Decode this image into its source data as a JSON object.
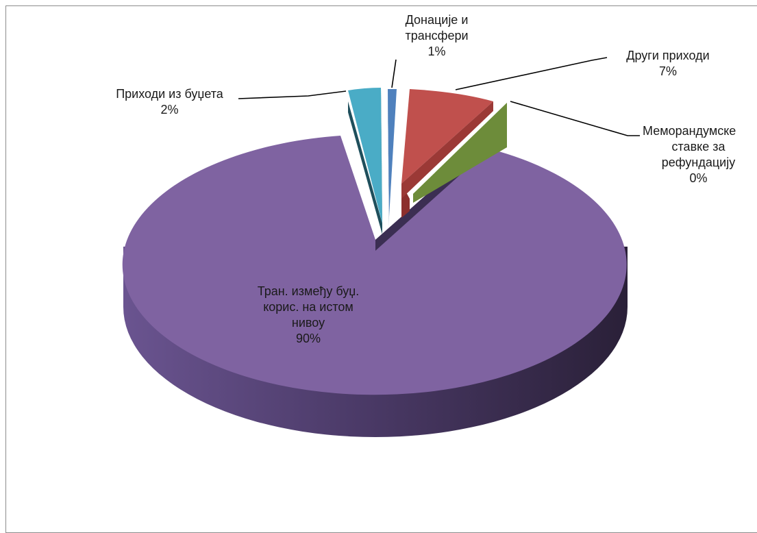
{
  "chart_data": {
    "type": "pie",
    "style": "3d-exploded",
    "slices": [
      {
        "label": "Тран. између буџ. корис. на истом нивоу",
        "label_lines": [
          "Тран. између буџ.",
          "корис. на истом",
          "нивоу"
        ],
        "value": 90,
        "pct": "90%",
        "color": "#8064a2"
      },
      {
        "label": "Приходи из буџета",
        "label_lines": [
          "Приходи из буџета"
        ],
        "value": 2,
        "pct": "2%",
        "color": "#4bacc6"
      },
      {
        "label": "Донације и трансфери",
        "label_lines": [
          "Донације и",
          "трансфери"
        ],
        "value": 1,
        "pct": "1%",
        "color": "#4f81bd"
      },
      {
        "label": "Други приходи",
        "label_lines": [
          "Други приходи"
        ],
        "value": 7,
        "pct": "7%",
        "color": "#c0504d"
      },
      {
        "label": "Меморандумске ставке за рефундацију",
        "label_lines": [
          "Меморандумске",
          "ставке за",
          "рефундацију"
        ],
        "value": 0,
        "pct": "0%",
        "color": "#9bbb59"
      }
    ]
  }
}
